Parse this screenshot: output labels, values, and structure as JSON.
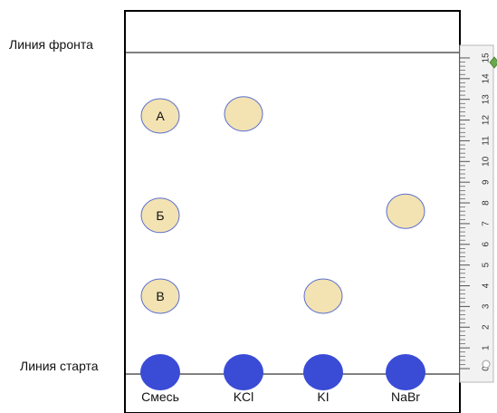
{
  "labels": {
    "front_line": "Линия фронта",
    "start_line": "Линия старта"
  },
  "lanes": [
    {
      "label": "Смесь"
    },
    {
      "label": "KCl"
    },
    {
      "label": "KI"
    },
    {
      "label": "NaBr"
    }
  ],
  "spots": [
    {
      "lane": 0,
      "label": "А",
      "rf_position": 12.2
    },
    {
      "lane": 0,
      "label": "Б",
      "rf_position": 7.4
    },
    {
      "lane": 0,
      "label": "В",
      "rf_position": 3.5
    },
    {
      "lane": 1,
      "label": "",
      "rf_position": 12.3
    },
    {
      "lane": 2,
      "label": "",
      "rf_position": 3.5
    },
    {
      "lane": 3,
      "label": "",
      "rf_position": 7.6
    }
  ],
  "start_spots": [
    0,
    1,
    2,
    3
  ],
  "ruler": {
    "min": 0,
    "max": 15,
    "tick_labels": [
      "0",
      "1",
      "2",
      "3",
      "4",
      "5",
      "6",
      "7",
      "8",
      "9",
      "10",
      "11",
      "12",
      "13",
      "14",
      "15"
    ]
  },
  "colors": {
    "start_spot": "#3a4bd6",
    "spot_fill": "#f3e2b2",
    "spot_stroke": "#5b6fcf",
    "plate_border": "#000000",
    "ruler_fill": "#f2f2f2",
    "ruler_stroke": "#b8b8b8",
    "slider_handle": "#6aa84f"
  }
}
